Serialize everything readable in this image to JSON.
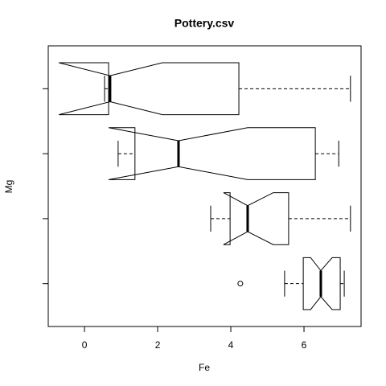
{
  "chart_data": {
    "type": "boxplot",
    "orientation": "horizontal",
    "notch": true,
    "title": "Pottery.csv",
    "x_label": "Fe",
    "y_label": "Mg",
    "categories": [
      null,
      null,
      null,
      null
    ],
    "boxes": [
      {
        "whisker_low": 5.47,
        "q1": 5.98,
        "median": 6.46,
        "q3": 6.99,
        "whisker_high": 7.1,
        "notch_low": 6.18,
        "notch_high": 6.77,
        "outliers": [
          4.26
        ]
      },
      {
        "whisker_low": 3.45,
        "q1": 3.98,
        "median": 4.46,
        "q3": 5.58,
        "whisker_high": 7.27,
        "notch_low": 3.8,
        "notch_high": 5.16,
        "outliers": []
      },
      {
        "whisker_low": 0.92,
        "q1": 1.38,
        "median": 2.57,
        "q3": 6.31,
        "whisker_high": 6.95,
        "notch_low": 0.66,
        "notch_high": 4.46,
        "outliers": []
      },
      {
        "whisker_low": 0.55,
        "q1": 0.66,
        "median": 0.7,
        "q3": 4.22,
        "whisker_high": 7.27,
        "notch_low": -0.7,
        "notch_high": 2.13,
        "outliers": []
      }
    ],
    "color": "#000000",
    "xlim": [
      -0.99,
      7.56
    ],
    "xticks": [
      0,
      2,
      4,
      6
    ],
    "ylim": [
      0.34,
      4.66
    ]
  }
}
